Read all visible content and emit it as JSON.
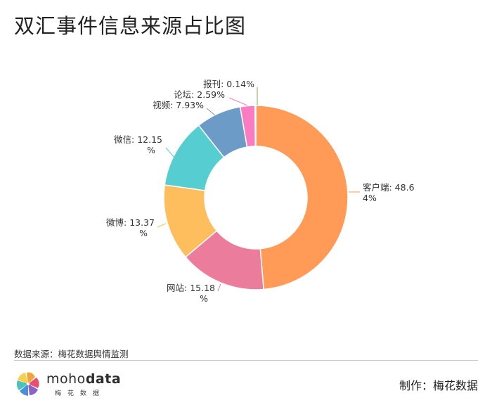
{
  "page": {
    "title": "双汇事件信息来源占比图",
    "source": "数据来源：梅花数据舆情监测",
    "credit": "制作：梅花数据",
    "logo": {
      "word_light": "moho",
      "word_bold": "data",
      "subtitle": "梅花数据"
    }
  },
  "chart_data": {
    "type": "pie",
    "donut": true,
    "title": "双汇事件信息来源占比图",
    "slices": [
      {
        "name": "客户端",
        "value": 48.64,
        "label_lines": [
          "客户端: 48.6",
          "4%"
        ],
        "color": "#ff9a57"
      },
      {
        "name": "网站",
        "value": 15.18,
        "label_lines": [
          "网站: 15.18",
          "%"
        ],
        "color": "#ec7c9b"
      },
      {
        "name": "微博",
        "value": 13.37,
        "label_lines": [
          "微博: 13.37",
          "%"
        ],
        "color": "#ffbe5e"
      },
      {
        "name": "微信",
        "value": 12.15,
        "label_lines": [
          "微信: 12.15",
          "%"
        ],
        "color": "#55cdd1"
      },
      {
        "name": "视频",
        "value": 7.93,
        "label_lines": [
          "视频: 7.93%"
        ],
        "color": "#6b9bc6"
      },
      {
        "name": "论坛",
        "value": 2.59,
        "label_lines": [
          "论坛: 2.59%"
        ],
        "color": "#f97cc2"
      },
      {
        "name": "报刊",
        "value": 0.14,
        "label_lines": [
          "报刊: 0.14%"
        ],
        "color": "#7fb24f"
      }
    ]
  }
}
